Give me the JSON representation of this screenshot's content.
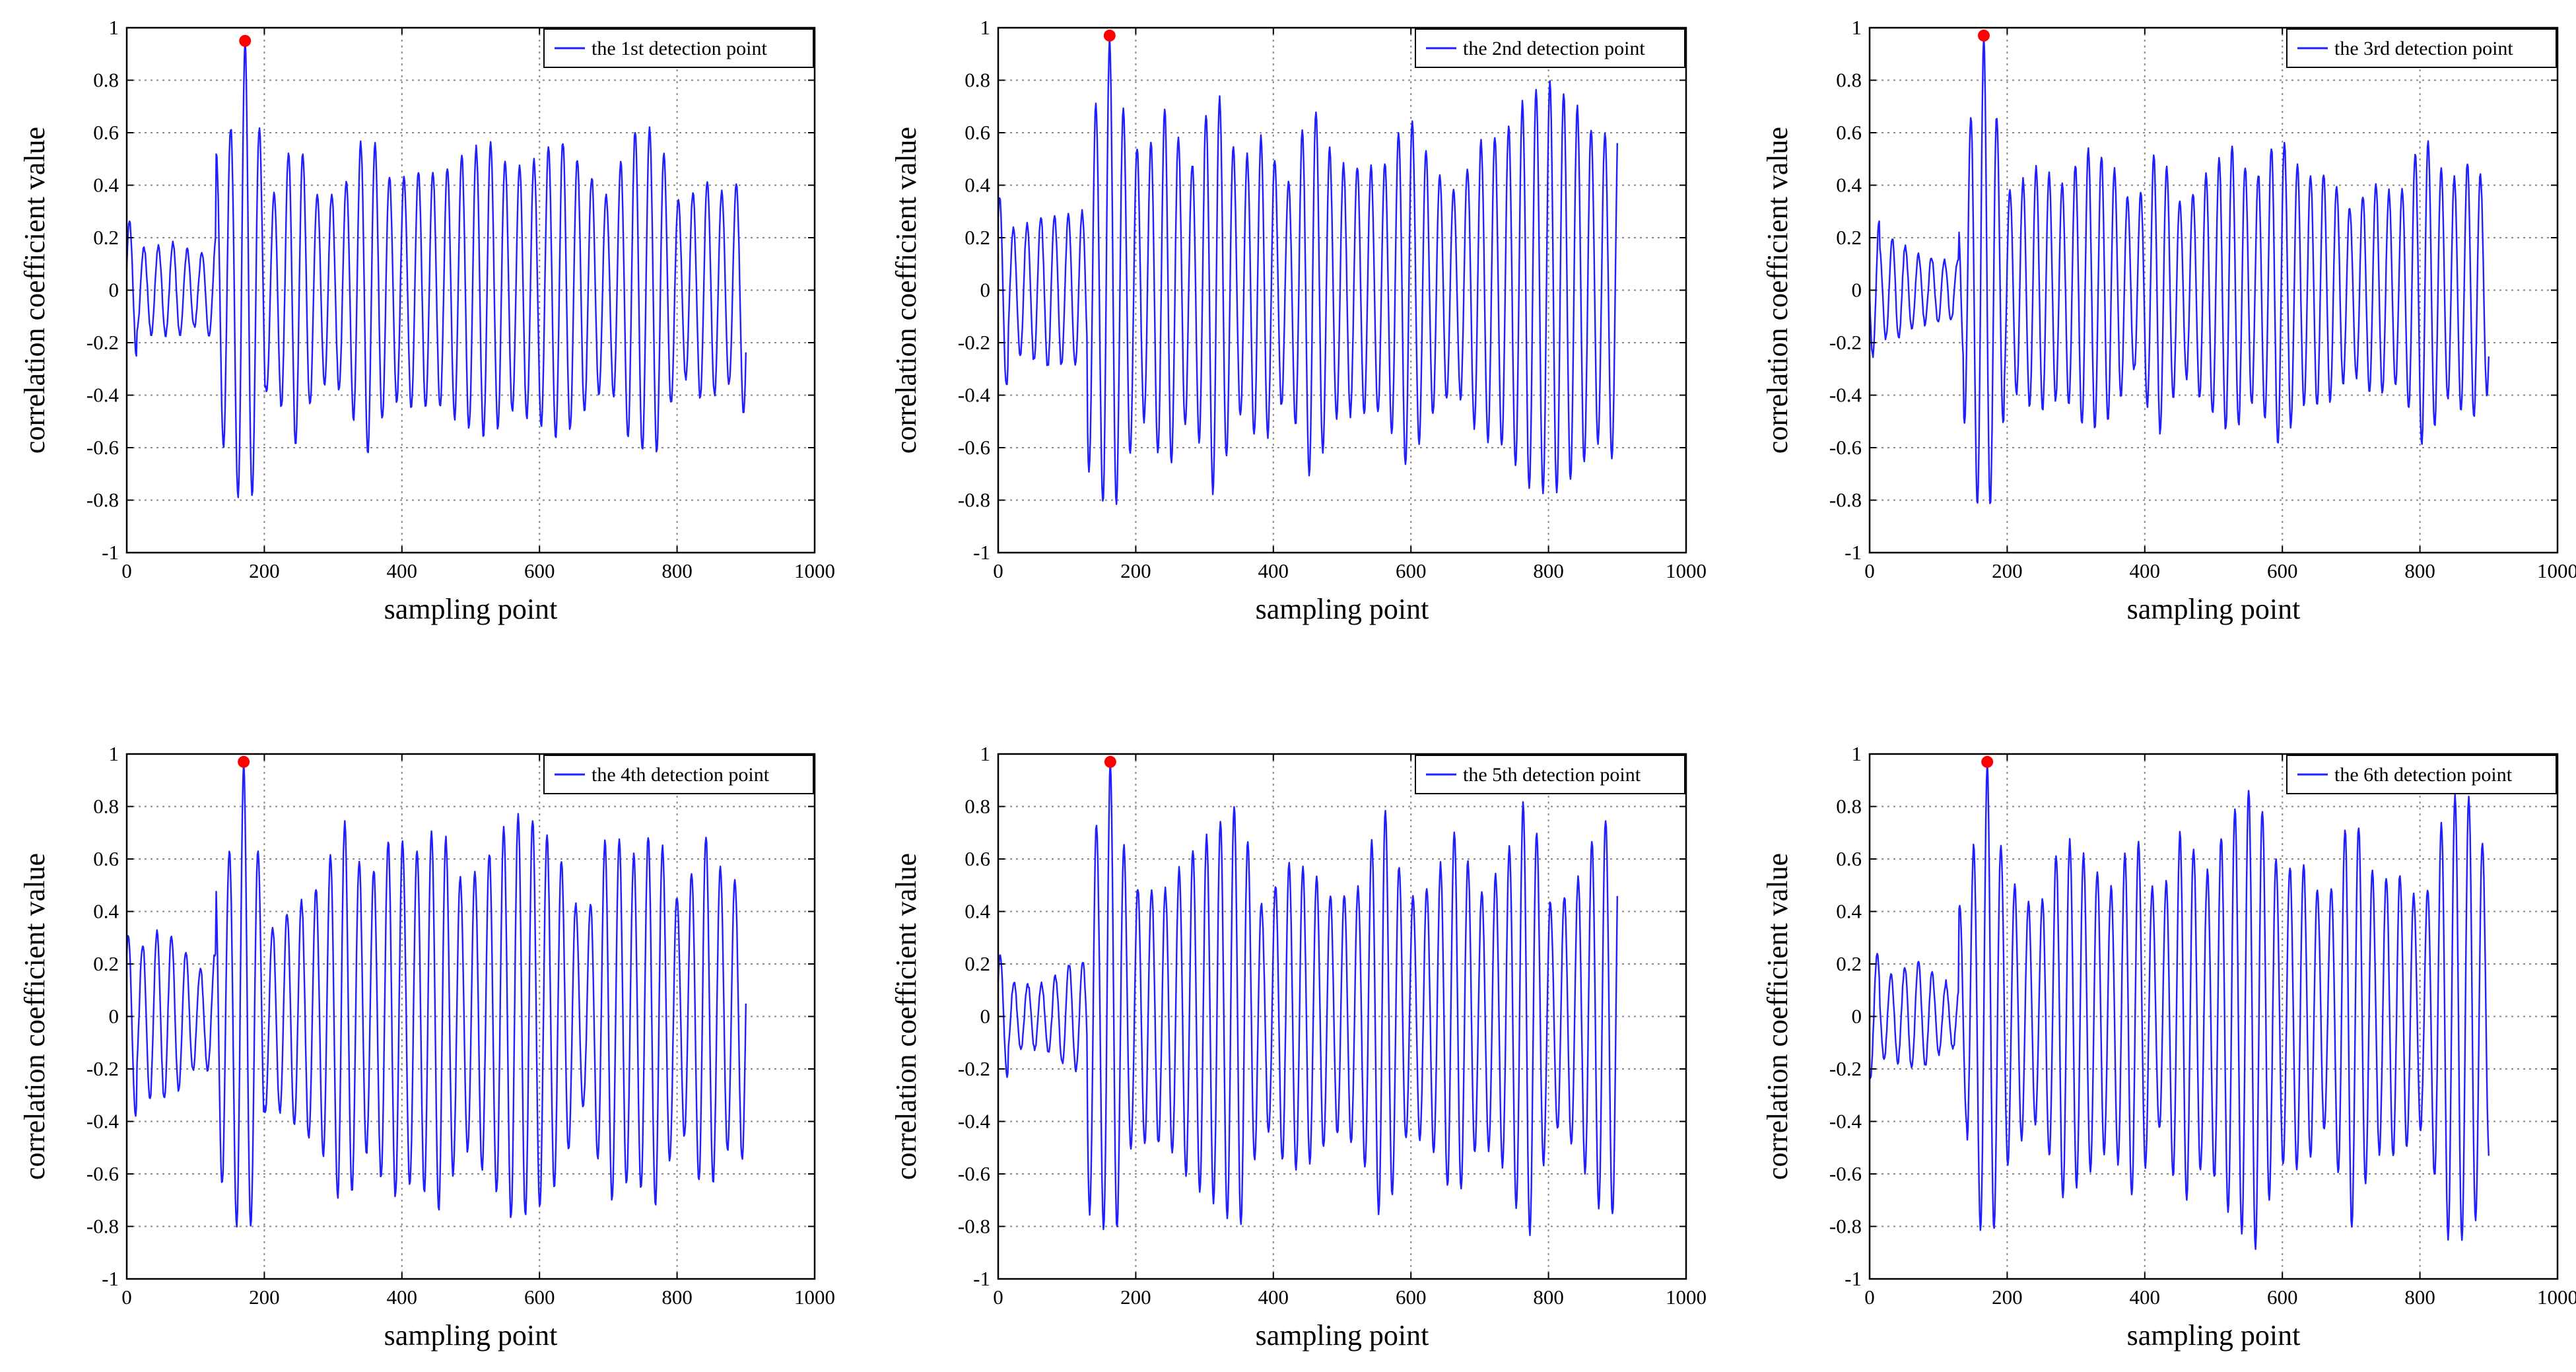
{
  "figure": {
    "layout": "2x3 grid",
    "colors": {
      "series": "#1f1fff",
      "peak_marker": "#ff0000",
      "grid": "#888888",
      "axes": "#000000"
    }
  },
  "chart_data": [
    {
      "type": "line",
      "legend": "the 1st detection point",
      "xlabel": "sampling  point",
      "ylabel": "correlation  coefficient  value",
      "xlim": [
        0,
        1000
      ],
      "ylim": [
        -1,
        1
      ],
      "xticks": [
        "0",
        "200",
        "400",
        "600",
        "800",
        "1000"
      ],
      "yticks": [
        "-1",
        "-0.8",
        "-0.6",
        "-0.4",
        "-0.2",
        "0",
        "0.2",
        "0.4",
        "0.6",
        "0.8",
        "1"
      ],
      "legend_position": "top-right",
      "grid": true,
      "peak": {
        "x": 172,
        "y": 0.95
      },
      "series_params": {
        "x_end": 900,
        "period": 21,
        "seed": 11,
        "early_amp": 0.22,
        "late_amp": 0.55
      }
    },
    {
      "type": "line",
      "legend": "the 2nd detection point",
      "xlabel": "sampling  point",
      "ylabel": "correlation  coefficient  value",
      "xlim": [
        0,
        1000
      ],
      "ylim": [
        -1,
        1
      ],
      "xticks": [
        "0",
        "200",
        "400",
        "600",
        "800",
        "1000"
      ],
      "yticks": [
        "-1",
        "-0.8",
        "-0.6",
        "-0.4",
        "-0.2",
        "0",
        "0.2",
        "0.4",
        "0.6",
        "0.8",
        "1"
      ],
      "legend_position": "top-right",
      "grid": true,
      "peak": {
        "x": 162,
        "y": 0.97
      },
      "series_params": {
        "x_end": 900,
        "period": 20,
        "seed": 23,
        "early_amp": 0.3,
        "late_amp": 0.65
      }
    },
    {
      "type": "line",
      "legend": "the 3rd detection point",
      "xlabel": "sampling  point",
      "ylabel": "correlation  coefficient  value",
      "xlim": [
        0,
        1000
      ],
      "ylim": [
        -1,
        1
      ],
      "xticks": [
        "0",
        "200",
        "400",
        "600",
        "800",
        "1000"
      ],
      "yticks": [
        "-1",
        "-0.8",
        "-0.6",
        "-0.4",
        "-0.2",
        "0",
        "0.2",
        "0.4",
        "0.6",
        "0.8",
        "1"
      ],
      "legend_position": "top-right",
      "grid": true,
      "peak": {
        "x": 166,
        "y": 0.97
      },
      "series_params": {
        "x_end": 900,
        "period": 19,
        "seed": 37,
        "early_amp": 0.2,
        "late_amp": 0.5
      }
    },
    {
      "type": "line",
      "legend": "the 4th detection point",
      "xlabel": "sampling  point",
      "ylabel": "correlation  coefficient  value",
      "xlim": [
        0,
        1000
      ],
      "ylim": [
        -1,
        1
      ],
      "xticks": [
        "0",
        "200",
        "400",
        "600",
        "800",
        "1000"
      ],
      "yticks": [
        "-1",
        "-0.8",
        "-0.6",
        "-0.4",
        "-0.2",
        "0",
        "0.2",
        "0.4",
        "0.6",
        "0.8",
        "1"
      ],
      "legend_position": "top-right",
      "grid": true,
      "peak": {
        "x": 170,
        "y": 0.97
      },
      "series_params": {
        "x_end": 900,
        "period": 21,
        "seed": 41,
        "early_amp": 0.25,
        "late_amp": 0.6
      }
    },
    {
      "type": "line",
      "legend": "the 5th detection point",
      "xlabel": "sampling  point",
      "ylabel": "correlation  coefficient  value",
      "xlim": [
        0,
        1000
      ],
      "ylim": [
        -1,
        1
      ],
      "xticks": [
        "0",
        "200",
        "400",
        "600",
        "800",
        "1000"
      ],
      "yticks": [
        "-1",
        "-0.8",
        "-0.6",
        "-0.4",
        "-0.2",
        "0",
        "0.2",
        "0.4",
        "0.6",
        "0.8",
        "1"
      ],
      "legend_position": "top-right",
      "grid": true,
      "peak": {
        "x": 163,
        "y": 0.97
      },
      "series_params": {
        "x_end": 900,
        "period": 20,
        "seed": 53,
        "early_amp": 0.2,
        "late_amp": 0.7
      }
    },
    {
      "type": "line",
      "legend": "the 6th detection point",
      "xlabel": "sampling  point",
      "ylabel": "correlation  coefficient  value",
      "xlim": [
        0,
        1000
      ],
      "ylim": [
        -1,
        1
      ],
      "xticks": [
        "0",
        "200",
        "400",
        "600",
        "800",
        "1000"
      ],
      "yticks": [
        "-1",
        "-0.8",
        "-0.6",
        "-0.4",
        "-0.2",
        "0",
        "0.2",
        "0.4",
        "0.6",
        "0.8",
        "1"
      ],
      "legend_position": "top-right",
      "grid": true,
      "peak": {
        "x": 171,
        "y": 0.97
      },
      "series_params": {
        "x_end": 900,
        "period": 20,
        "seed": 67,
        "early_amp": 0.2,
        "late_amp": 0.7
      }
    }
  ]
}
